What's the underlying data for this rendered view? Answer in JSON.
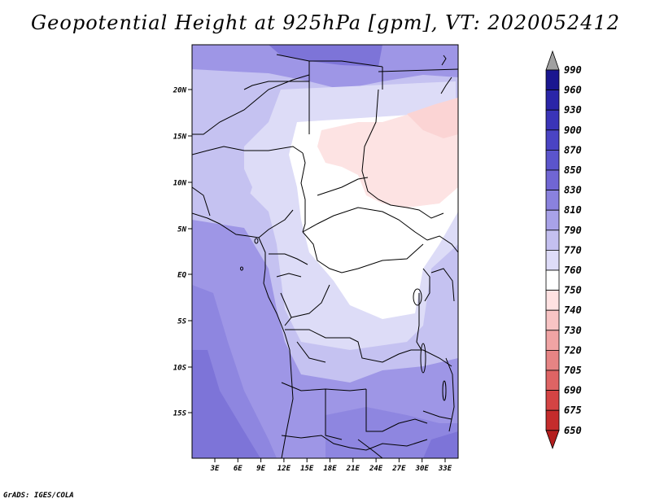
{
  "title": "Geopotential Height at 925hPa [gpm], VT: 2020052412",
  "credit": "GrADS: IGES/COLA",
  "map": {
    "lat_labels": [
      "20N",
      "15N",
      "10N",
      "5N",
      "EQ",
      "5S",
      "10S",
      "15S"
    ],
    "lon_labels": [
      "3E",
      "6E",
      "9E",
      "12E",
      "15E",
      "18E",
      "21E",
      "24E",
      "27E",
      "30E",
      "33E"
    ]
  },
  "colorbar": {
    "levels": [
      "990",
      "960",
      "930",
      "900",
      "870",
      "850",
      "830",
      "810",
      "790",
      "770",
      "760",
      "750",
      "740",
      "730",
      "720",
      "705",
      "690",
      "675",
      "650"
    ],
    "colors": {
      "top_arrow": "#a0a0a0",
      "bottom_arrow": "#b41e1e",
      "boxes": [
        "#1a1690",
        "#2a25a8",
        "#3a34b8",
        "#4a44c4",
        "#5b55cc",
        "#7066d4",
        "#8a82de",
        "#a8a2e8",
        "#c4c0f0",
        "#dedcf8",
        "#ffffff",
        "#ffe2e2",
        "#f8c4c4",
        "#f0a4a4",
        "#e68484",
        "#de6464",
        "#d44444",
        "#c42c2c"
      ]
    },
    "field_colors": {
      "deep": "#7d74d8",
      "mid": "#9e96e6",
      "light": "#c5c2f1",
      "pale": "#dddcf7",
      "white": "#ffffff",
      "pink": "#fde3e3"
    }
  }
}
